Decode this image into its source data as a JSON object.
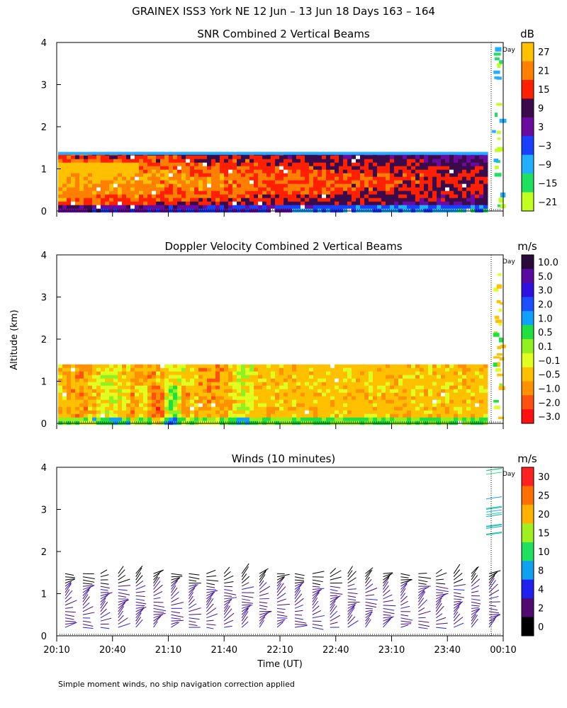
{
  "figure": {
    "title": "GRAINEX ISS3 York NE  12 Jun – 13 Jun 18 Days 163 – 164",
    "ylabel": "Altitude (km)",
    "xlabel": "Time (UT)",
    "footnote": "Simple moment winds, no ship navigation correction applied",
    "day_marker": "Day"
  },
  "chart_data": [
    {
      "type": "heatmap",
      "title": "SNR Combined 2 Vertical Beams",
      "unit": "dB",
      "ylim": [
        0,
        4
      ],
      "yticks": [
        "0",
        "1",
        "2",
        "3",
        "4"
      ],
      "colorbar_labels": [
        "27",
        "21",
        "15",
        "9",
        "3",
        "−3",
        "−9",
        "−15",
        "−21"
      ],
      "colorbar_colors": [
        "#ffc000",
        "#ff8000",
        "#ff2000",
        "#3a0a4a",
        "#6a0aa0",
        "#1a40ff",
        "#20b0ff",
        "#20e060",
        "#c0ff20"
      ],
      "layer_top_km": 1.4
    },
    {
      "type": "heatmap",
      "title": "Doppler Velocity Combined 2 Vertical Beams",
      "unit": "m/s",
      "ylim": [
        0,
        4
      ],
      "yticks": [
        "0",
        "1",
        "2",
        "3",
        "4"
      ],
      "colorbar_labels": [
        "10.0",
        "5.0",
        "3.0",
        "2.0",
        "1.0",
        "0.5",
        "0.1",
        "−0.1",
        "−0.5",
        "−1.0",
        "−2.0",
        "−3.0"
      ],
      "colorbar_colors": [
        "#2a0a3a",
        "#5a0aa0",
        "#3010e0",
        "#1a50ff",
        "#10a0ff",
        "#20e040",
        "#90f020",
        "#e0ff20",
        "#ffc000",
        "#ff9000",
        "#ff5010",
        "#ff1010"
      ],
      "layer_top_km": 1.4
    },
    {
      "type": "barbs",
      "title": "Winds (10 minutes)",
      "unit": "m/s",
      "ylim": [
        0,
        4
      ],
      "yticks": [
        "0",
        "1",
        "2",
        "3",
        "4"
      ],
      "colorbar_labels": [
        "30",
        "25",
        "20",
        "15",
        "10",
        "8",
        "4",
        "2",
        "0"
      ],
      "colorbar_colors": [
        "#ff2020",
        "#ff7000",
        "#ffb000",
        "#a0f020",
        "#20e060",
        "#10a0f0",
        "#2020f0",
        "#500a70",
        "#000000"
      ],
      "x_time_labels": [
        "20:10",
        "20:40",
        "21:10",
        "21:40",
        "22:10",
        "22:40",
        "23:10",
        "23:40",
        "00:10"
      ],
      "profile_times_min_after_2010": [
        0,
        10,
        20,
        30,
        40,
        50,
        60,
        70,
        80,
        90,
        100,
        110,
        120,
        130,
        140,
        150,
        160,
        170,
        180,
        190,
        200,
        210,
        220,
        230,
        240
      ]
    }
  ]
}
